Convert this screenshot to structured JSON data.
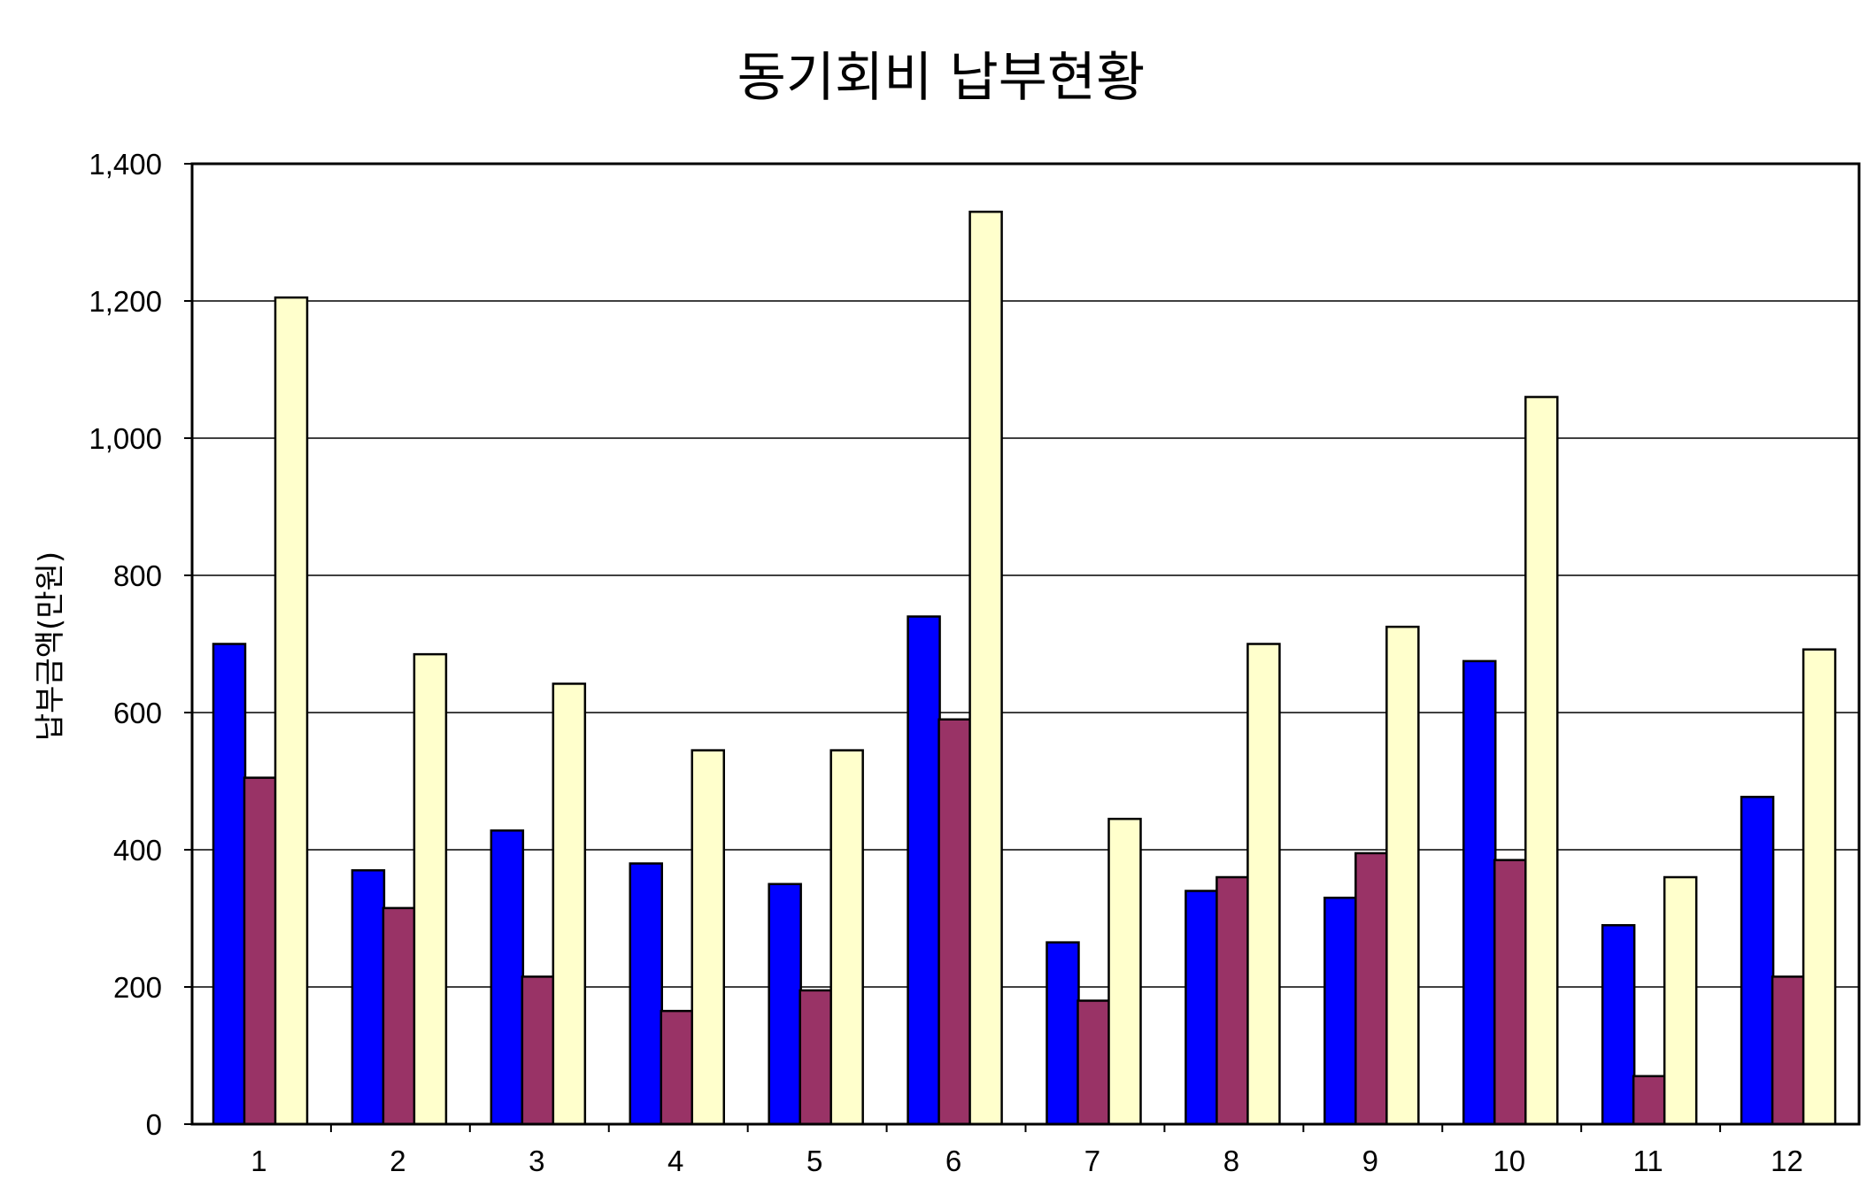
{
  "chart_data": {
    "type": "bar",
    "title": "동기회비 납부현황",
    "xlabel": "",
    "ylabel": "납부금액(만원)",
    "ylim": [
      0,
      1400
    ],
    "yticks": [
      "0",
      "200",
      "400",
      "600",
      "800",
      "1,000",
      "1,200",
      "1,400"
    ],
    "grid": true,
    "legend": "none",
    "categories": [
      "1",
      "2",
      "3",
      "4",
      "5",
      "6",
      "7",
      "8",
      "9",
      "10",
      "11",
      "12"
    ],
    "series": [
      {
        "color": "#0000ff",
        "values": [
          700,
          370,
          428,
          380,
          350,
          740,
          265,
          340,
          330,
          675,
          290,
          477
        ]
      },
      {
        "color": "#993366",
        "values": [
          505,
          315,
          215,
          165,
          195,
          590,
          180,
          360,
          395,
          385,
          70,
          215
        ]
      },
      {
        "color": "#ffffcc",
        "values": [
          1205,
          685,
          642,
          545,
          545,
          1330,
          445,
          700,
          725,
          1060,
          360,
          692
        ]
      }
    ]
  }
}
